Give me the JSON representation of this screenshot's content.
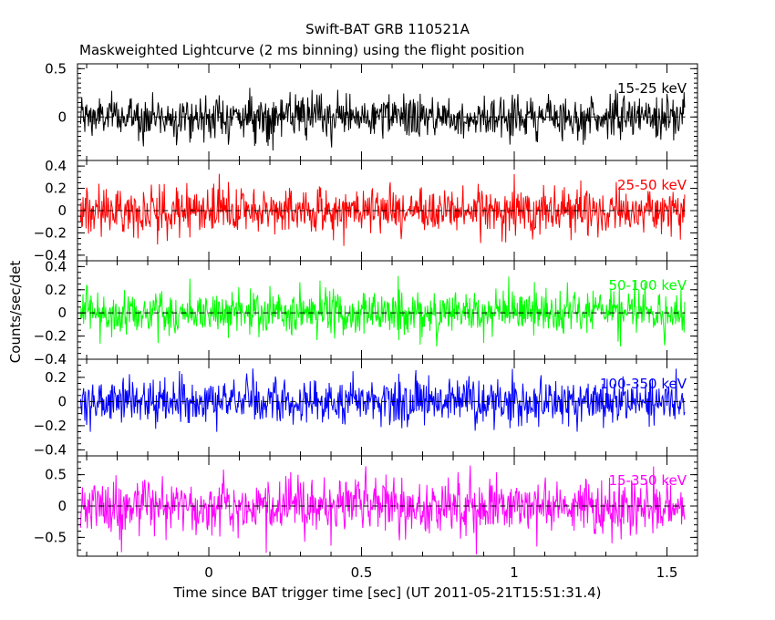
{
  "chart_data": {
    "type": "line",
    "title": "Swift-BAT GRB 110521A",
    "subtitle": "Maskweighted Lightcurve (2 ms binning) using the flight position",
    "xlabel": "Time since BAT trigger time [sec] (UT 2011-05-21T15:51:31.4)",
    "ylabel": "Counts/sec/det",
    "xlim": [
      -0.43,
      1.6
    ],
    "x_ticks": [
      0,
      0.5,
      1,
      1.5
    ],
    "x_tick_labels": [
      "0",
      "0.5",
      "1",
      "1.5"
    ],
    "x_data_range": [
      -0.42,
      1.56
    ],
    "grid": false,
    "zero_line": "dashed",
    "panels": [
      {
        "name": "15-25 keV",
        "color": "#000000",
        "ylim": [
          -0.45,
          0.55
        ],
        "y_ticks": [
          0,
          0.5
        ],
        "y_tick_labels": [
          "0",
          "0.5"
        ],
        "noise_amplitude": 0.2
      },
      {
        "name": "25-50 keV",
        "color": "#ff0000",
        "ylim": [
          -0.45,
          0.45
        ],
        "y_ticks": [
          -0.4,
          -0.2,
          0,
          0.2,
          0.4
        ],
        "y_tick_labels": [
          "−0.4",
          "−0.2",
          "0",
          "0.2",
          "0.4"
        ],
        "noise_amplitude": 0.19
      },
      {
        "name": "50-100 keV",
        "color": "#00ff00",
        "ylim": [
          -0.4,
          0.45
        ],
        "y_ticks": [
          -0.4,
          -0.2,
          0,
          0.2,
          0.4
        ],
        "y_tick_labels": [
          "−0.4",
          "−0.2",
          "0",
          "0.2",
          "0.4"
        ],
        "noise_amplitude": 0.18
      },
      {
        "name": "100-350 keV",
        "color": "#0000ff",
        "ylim": [
          -0.45,
          0.35
        ],
        "y_ticks": [
          -0.4,
          -0.2,
          0,
          0.2
        ],
        "y_tick_labels": [
          "−0.4",
          "−0.2",
          "0",
          "0.2"
        ],
        "noise_amplitude": 0.17
      },
      {
        "name": "15-350 keV",
        "color": "#ff00ff",
        "ylim": [
          -0.8,
          0.8
        ],
        "y_ticks": [
          -0.5,
          0,
          0.5
        ],
        "y_tick_labels": [
          "−0.5",
          "0",
          "0.5"
        ],
        "noise_amplitude": 0.4
      }
    ]
  }
}
